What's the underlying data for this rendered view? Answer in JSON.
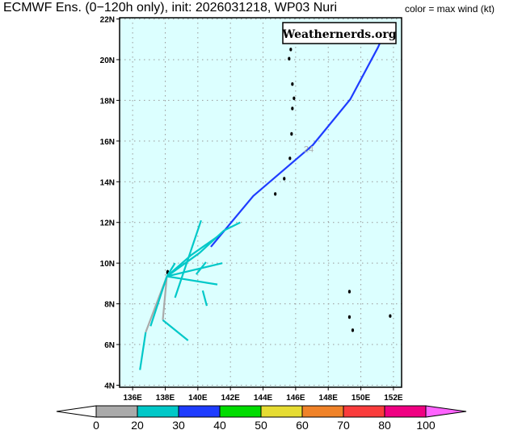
{
  "title": "ECMWF Ens. (0−120h only), init: 2026031218, WP03 Nuri",
  "subtitle": "color = max wind (kt)",
  "chart_data": {
    "type": "line",
    "title": "ECMWF Ens. (0−120h only), init: 2026031218, WP03 Nuri",
    "watermark": "Weathernerds.org",
    "xlabel": "",
    "ylabel": "",
    "xlim": [
      135.2,
      152.5
    ],
    "ylim": [
      3.9,
      22.06
    ],
    "grid": true,
    "x_ticks": [
      136,
      138,
      140,
      142,
      144,
      146,
      148,
      150,
      152
    ],
    "x_tick_labels": [
      "136E",
      "138E",
      "140E",
      "142E",
      "144E",
      "146E",
      "148E",
      "150E",
      "152E"
    ],
    "y_ticks": [
      4,
      6,
      8,
      10,
      12,
      14,
      16,
      18,
      20,
      22
    ],
    "y_tick_labels": [
      "4N",
      "6N",
      "8N",
      "10N",
      "12N",
      "14N",
      "16N",
      "18N",
      "20N",
      "22N"
    ],
    "annotations": [
      {
        "text": "24",
        "lon": 146.8,
        "lat": 15.45,
        "color": "#aaaaaa"
      }
    ],
    "colorbar": {
      "label": "max wind (kt)",
      "bounds": [
        "0",
        "20",
        "30",
        "40",
        "50",
        "60",
        "70",
        "80",
        "100"
      ],
      "colors": [
        "#aaaaaa",
        "#00c8c8",
        "#1e3cff",
        "#00dc00",
        "#e6dc32",
        "#f08228",
        "#fa3c3c",
        "#f00082"
      ],
      "under_color": "#ffffff",
      "over_color": "#ff64ff"
    },
    "series": [
      {
        "name": "member-blue",
        "color": "#1e3cff",
        "points": [
          [
            140.8,
            10.8
          ],
          [
            143.4,
            13.3
          ],
          [
            147.05,
            15.8
          ],
          [
            149.35,
            18.05
          ],
          [
            151.05,
            20.6
          ],
          [
            151.5,
            21.4
          ]
        ]
      },
      {
        "name": "member-cyan-1",
        "color": "#00c8c8",
        "points": [
          [
            140.2,
            12.1
          ],
          [
            138.6,
            8.3
          ]
        ]
      },
      {
        "name": "member-cyan-2",
        "color": "#00c8c8",
        "points": [
          [
            138.1,
            9.35
          ],
          [
            140.1,
            10.5
          ],
          [
            141.6,
            11.6
          ],
          [
            142.6,
            12.0
          ]
        ]
      },
      {
        "name": "member-cyan-3",
        "color": "#00c8c8",
        "points": [
          [
            138.1,
            9.35
          ],
          [
            139.6,
            10.4
          ],
          [
            141.2,
            11.3
          ]
        ]
      },
      {
        "name": "member-cyan-4",
        "color": "#00c8c8",
        "points": [
          [
            138.1,
            9.35
          ],
          [
            141.5,
            10.0
          ]
        ]
      },
      {
        "name": "member-cyan-5",
        "color": "#00c8c8",
        "points": [
          [
            138.1,
            9.35
          ],
          [
            141.2,
            8.95
          ]
        ]
      },
      {
        "name": "member-cyan-6",
        "color": "#00c8c8",
        "points": [
          [
            140.3,
            8.65
          ],
          [
            140.55,
            7.9
          ]
        ]
      },
      {
        "name": "member-cyan-7",
        "color": "#00c8c8",
        "points": [
          [
            139.9,
            9.45
          ],
          [
            140.5,
            10.05
          ]
        ]
      },
      {
        "name": "member-gray-1",
        "color": "#aaaaaa",
        "points": [
          [
            138.1,
            9.35
          ],
          [
            137.85,
            7.2
          ]
        ]
      },
      {
        "name": "member-cyan-8",
        "color": "#00c8c8",
        "points": [
          [
            137.85,
            7.2
          ],
          [
            139.4,
            6.2
          ]
        ]
      },
      {
        "name": "member-gray-2",
        "color": "#aaaaaa",
        "points": [
          [
            138.1,
            9.35
          ],
          [
            136.8,
            6.6
          ]
        ]
      },
      {
        "name": "member-cyan-9",
        "color": "#00c8c8",
        "points": [
          [
            136.8,
            6.6
          ],
          [
            136.45,
            4.75
          ]
        ]
      },
      {
        "name": "member-cyan-10",
        "color": "#00c8c8",
        "points": [
          [
            138.1,
            9.35
          ],
          [
            137.1,
            6.9
          ]
        ]
      },
      {
        "name": "member-cyan-11",
        "color": "#00c8c8",
        "points": [
          [
            138.1,
            9.35
          ],
          [
            138.6,
            10.0
          ]
        ]
      }
    ]
  }
}
